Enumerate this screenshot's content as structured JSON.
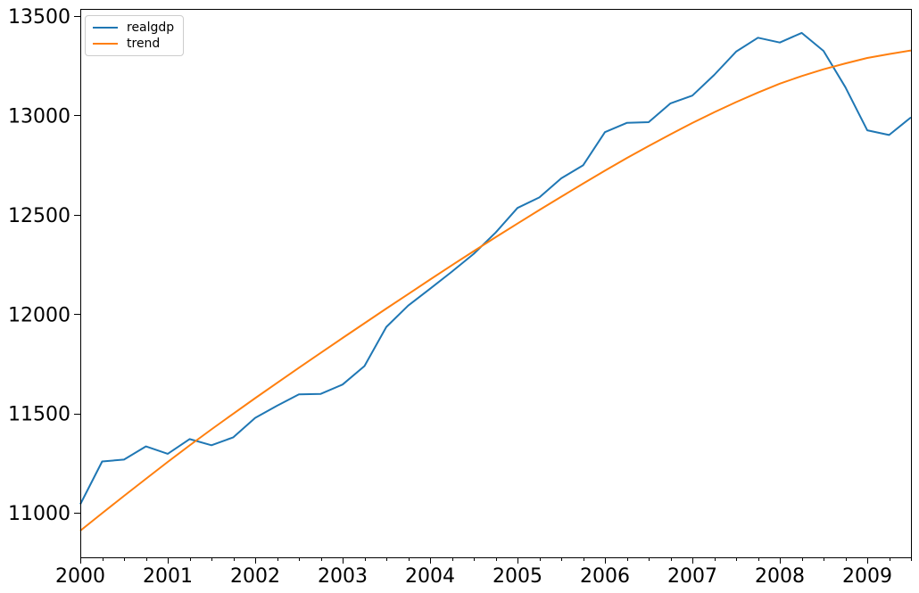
{
  "figure": {
    "background_color": "#ffffff",
    "axes_border_color": "#000000",
    "tick_label_color": "#000000"
  },
  "legend": {
    "position": "upper-left",
    "entries": [
      {
        "label": "realgdp",
        "color": "#1f77b4"
      },
      {
        "label": "trend",
        "color": "#ff7f0e"
      }
    ]
  },
  "chart_data": {
    "type": "line",
    "title": "",
    "xlabel": "",
    "ylabel": "",
    "grid": false,
    "legend_position": "upper left",
    "x_start": 2000.0,
    "x_step": 0.25,
    "xlim": [
      2000.0,
      2009.5
    ],
    "ylim": [
      10776,
      13536
    ],
    "x_major_ticks": [
      2000,
      2001,
      2002,
      2003,
      2004,
      2005,
      2006,
      2007,
      2008,
      2009
    ],
    "x_tick_labels": [
      "2000",
      "2001",
      "2002",
      "2003",
      "2004",
      "2005",
      "2006",
      "2007",
      "2008",
      "2009"
    ],
    "x_minor_tick_step": 0.25,
    "y_ticks": [
      11000,
      11500,
      12000,
      12500,
      13000,
      13500
    ],
    "y_tick_labels": [
      "11000",
      "11500",
      "12000",
      "12500",
      "13000",
      "13500"
    ],
    "series": [
      {
        "name": "realgdp",
        "color": "#1f77b4",
        "values": [
          11043.0,
          11258.5,
          11267.9,
          11334.5,
          11297.2,
          11371.3,
          11340.1,
          11380.1,
          11477.9,
          11538.8,
          11596.4,
          11598.8,
          11645.8,
          11738.7,
          11935.5,
          12042.8,
          12127.6,
          12213.8,
          12303.5,
          12410.3,
          12534.1,
          12587.5,
          12683.2,
          12748.7,
          12915.9,
          12962.5,
          12965.9,
          13060.7,
          13099.9,
          13204.0,
          13321.1,
          13391.2,
          13366.9,
          13415.3,
          13324.6,
          13141.9,
          12925.4,
          12901.5,
          12990.3
        ]
      },
      {
        "name": "trend",
        "color": "#ff7f0e",
        "values": [
          10910,
          10998,
          11085,
          11171,
          11256,
          11339,
          11420,
          11499,
          11577,
          11654,
          11730,
          11805,
          11880,
          11954,
          12028,
          12101,
          12174,
          12246,
          12317,
          12387,
          12456,
          12524,
          12591,
          12657,
          12722,
          12785,
          12846,
          12905,
          12962,
          13016,
          13067,
          13115,
          13160,
          13198,
          13232,
          13262,
          13289,
          13309,
          13327
        ]
      }
    ]
  }
}
